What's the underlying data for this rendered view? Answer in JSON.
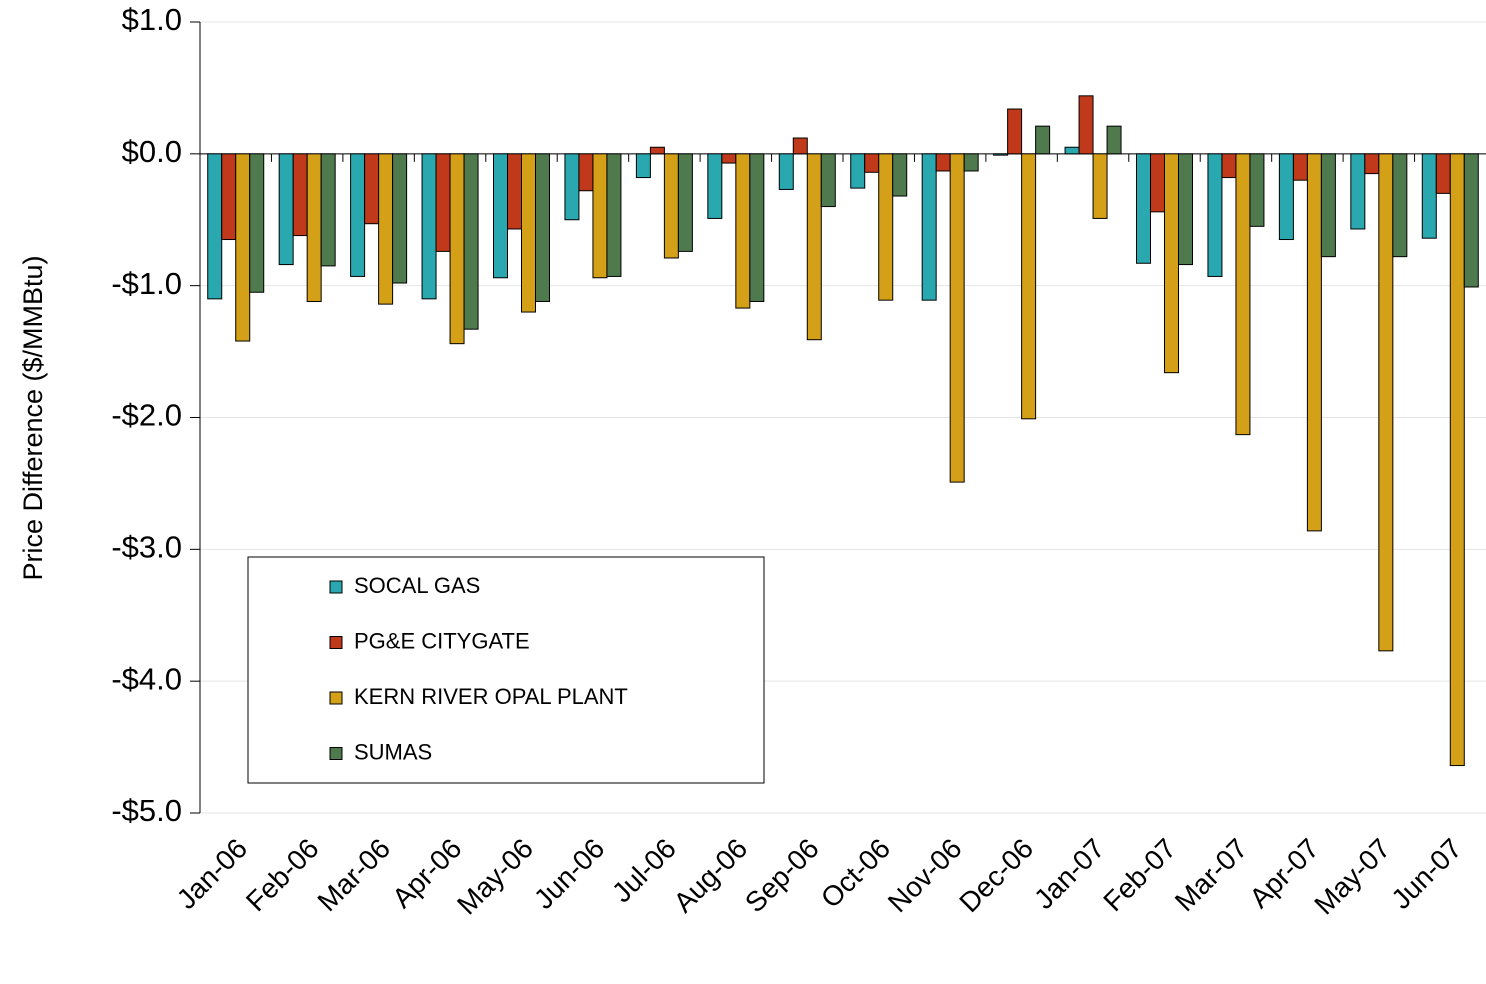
{
  "chart_data": {
    "type": "bar",
    "y_label": "Price Difference ($/MMBtu)",
    "categories": [
      "Jan-06",
      "Feb-06",
      "Mar-06",
      "Apr-06",
      "May-06",
      "Jun-06",
      "Jul-06",
      "Aug-06",
      "Sep-06",
      "Oct-06",
      "Nov-06",
      "Dec-06",
      "Jan-07",
      "Feb-07",
      "Mar-07",
      "Apr-07",
      "May-07",
      "Jun-07"
    ],
    "series": [
      {
        "name": "SOCAL GAS",
        "color": "#2aa8b0",
        "values": [
          -1.1,
          -0.84,
          -0.93,
          -1.1,
          -0.94,
          -0.5,
          -0.18,
          -0.49,
          -0.27,
          -0.26,
          -1.11,
          -0.01,
          0.05,
          -0.83,
          -0.93,
          -0.65,
          -0.57,
          -0.64
        ]
      },
      {
        "name": "PG&E CITYGATE",
        "color": "#c0391b",
        "values": [
          -0.65,
          -0.62,
          -0.53,
          -0.74,
          -0.57,
          -0.28,
          0.05,
          -0.07,
          0.12,
          -0.14,
          -0.13,
          0.34,
          0.44,
          -0.44,
          -0.18,
          -0.2,
          -0.15,
          -0.3
        ]
      },
      {
        "name": "KERN RIVER OPAL PLANT",
        "color": "#d4a017",
        "values": [
          -1.42,
          -1.12,
          -1.14,
          -1.44,
          -1.2,
          -0.94,
          -0.79,
          -1.17,
          -1.41,
          -1.11,
          -2.49,
          -2.01,
          -0.49,
          -1.66,
          -2.13,
          -2.86,
          -3.77,
          -4.64
        ]
      },
      {
        "name": "SUMAS",
        "color": "#4e7a4e",
        "values": [
          -1.05,
          -0.85,
          -0.98,
          -1.33,
          -1.12,
          -0.93,
          -0.74,
          -1.12,
          -0.4,
          -0.32,
          -0.13,
          0.21,
          0.21,
          -0.84,
          -0.55,
          -0.78,
          -0.78,
          -1.01
        ]
      }
    ],
    "ylim": [
      -5,
      1
    ],
    "yticks": [
      {
        "value": 1,
        "label": "$1.0"
      },
      {
        "value": 0,
        "label": "$0.0"
      },
      {
        "value": -1,
        "label": "-$1.0"
      },
      {
        "value": -2,
        "label": "-$2.0"
      },
      {
        "value": -3,
        "label": "-$3.0"
      },
      {
        "value": -4,
        "label": "-$4.0"
      },
      {
        "value": -5,
        "label": "-$5.0"
      }
    ],
    "grid": true
  }
}
